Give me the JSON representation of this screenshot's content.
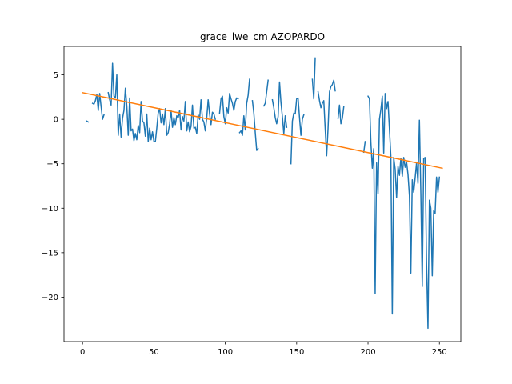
{
  "chart_data": {
    "type": "line",
    "title": "grace_lwe_cm AZOPARDO",
    "xlabel": "",
    "ylabel": "",
    "xlim": [
      -13,
      265
    ],
    "ylim": [
      -25,
      8.2
    ],
    "xticks": [
      0,
      50,
      100,
      150,
      200,
      250
    ],
    "yticks": [
      5,
      0,
      -5,
      -10,
      -15,
      -20
    ],
    "grid": false,
    "colors": {
      "observed": "#1f77b4",
      "trend": "#ff7f0e"
    },
    "series": [
      {
        "kind": "observed",
        "segments": [
          [
            [
              3,
              -0.2
            ],
            [
              4,
              -0.3
            ]
          ],
          [
            [
              7,
              1.8
            ],
            [
              8,
              1.7
            ],
            [
              9,
              2.1
            ],
            [
              10,
              2.8
            ],
            [
              11,
              1.0
            ],
            [
              12,
              2.9
            ],
            [
              13,
              1.4
            ],
            [
              14,
              0.0
            ],
            [
              15,
              0.5
            ]
          ],
          [
            [
              18,
              3.0
            ],
            [
              19,
              2.2
            ],
            [
              20,
              1.6
            ],
            [
              21,
              6.3
            ],
            [
              22,
              2.6
            ],
            [
              23,
              2.4
            ],
            [
              24,
              5.0
            ],
            [
              25,
              -1.8
            ],
            [
              26,
              0.6
            ],
            [
              27,
              -2.0
            ],
            [
              28,
              0.1
            ],
            [
              29,
              1.0
            ],
            [
              30,
              3.5
            ],
            [
              31,
              1.5
            ],
            [
              32,
              -1.8
            ],
            [
              33,
              2.4
            ],
            [
              34,
              -1.3
            ],
            [
              35,
              -1.1
            ],
            [
              36,
              -2.4
            ],
            [
              37,
              -1.6
            ],
            [
              38,
              -2.3
            ],
            [
              39,
              -0.7
            ],
            [
              40,
              -1.5
            ],
            [
              41,
              2.0
            ],
            [
              42,
              -0.2
            ],
            [
              43,
              -0.4
            ],
            [
              44,
              -1.9
            ],
            [
              45,
              0.6
            ],
            [
              46,
              -2.5
            ],
            [
              47,
              -1.0
            ],
            [
              48,
              -2.3
            ],
            [
              49,
              -1.4
            ],
            [
              50,
              -2.5
            ],
            [
              51,
              -2.5
            ],
            [
              52,
              -1.0
            ],
            [
              53,
              0.7
            ],
            [
              54,
              1.2
            ],
            [
              55,
              -0.4
            ],
            [
              56,
              0.6
            ],
            [
              57,
              -0.6
            ],
            [
              58,
              1.2
            ],
            [
              59,
              -1.8
            ],
            [
              60,
              -1.5
            ],
            [
              61,
              -0.5
            ],
            [
              62,
              1.0
            ],
            [
              63,
              -0.9
            ],
            [
              64,
              0.2
            ],
            [
              65,
              -0.6
            ],
            [
              66,
              0.4
            ],
            [
              67,
              0.2
            ],
            [
              68,
              1.0
            ],
            [
              69,
              -1.2
            ],
            [
              70,
              0.3
            ],
            [
              71,
              -0.2
            ],
            [
              72,
              2.0
            ],
            [
              73,
              -1.3
            ],
            [
              74,
              -0.3
            ],
            [
              75,
              -1.4
            ],
            [
              76,
              -0.8
            ],
            [
              77,
              1.6
            ],
            [
              78,
              -1.0
            ],
            [
              79,
              -0.9
            ],
            [
              80,
              -1.6
            ],
            [
              81,
              0.5
            ],
            [
              82,
              0.0
            ],
            [
              83,
              2.2
            ],
            [
              84,
              0.0
            ],
            [
              85,
              -0.3
            ],
            [
              86,
              -1.3
            ],
            [
              87,
              0.2
            ],
            [
              88,
              2.2
            ],
            [
              89,
              0.6
            ],
            [
              90,
              -0.6
            ],
            [
              91,
              0.8
            ],
            [
              92,
              0.6
            ],
            [
              93,
              0.0
            ]
          ],
          [
            [
              96,
              0.7
            ],
            [
              97,
              2.3
            ],
            [
              98,
              2.6
            ],
            [
              99,
              0.3
            ],
            [
              100,
              -0.5
            ],
            [
              101,
              1.3
            ],
            [
              102,
              0.7
            ],
            [
              103,
              2.9
            ],
            [
              104,
              2.3
            ],
            [
              105,
              1.8
            ],
            [
              106,
              1.0
            ],
            [
              107,
              2.0
            ],
            [
              108,
              2.4
            ],
            [
              109,
              2.3
            ]
          ],
          [
            [
              110,
              -1.5
            ],
            [
              111,
              -1.3
            ],
            [
              112,
              -1.8
            ],
            [
              113,
              0.4
            ],
            [
              114,
              -1.2
            ],
            [
              115,
              1.8
            ],
            [
              116,
              2.7
            ],
            [
              117,
              4.5
            ]
          ],
          [
            [
              119,
              2.1
            ],
            [
              120,
              0.7
            ],
            [
              121,
              -1.5
            ],
            [
              122,
              -3.5
            ],
            [
              123,
              -3.3
            ]
          ],
          [
            [
              127,
              1.5
            ],
            [
              128,
              1.8
            ],
            [
              129,
              3.1
            ],
            [
              130,
              4.4
            ]
          ],
          [
            [
              133,
              2.2
            ],
            [
              134,
              1.3
            ],
            [
              135,
              0.2
            ],
            [
              136,
              -0.5
            ],
            [
              137,
              0.3
            ],
            [
              138,
              4.2
            ],
            [
              139,
              1.9
            ],
            [
              140,
              0.3
            ],
            [
              141,
              -1.6
            ],
            [
              142,
              0.4
            ],
            [
              143,
              -0.9
            ]
          ],
          [
            [
              146,
              -5.0
            ],
            [
              147,
              -0.2
            ],
            [
              148,
              0.7
            ],
            [
              149,
              0.6
            ],
            [
              150,
              2.3
            ],
            [
              151,
              2.4
            ],
            [
              152,
              0.2
            ],
            [
              153,
              -1.8
            ],
            [
              154,
              0.0
            ],
            [
              155,
              0.5
            ]
          ],
          [
            [
              161,
              4.5
            ],
            [
              162,
              2.3
            ],
            [
              163,
              6.9
            ]
          ],
          [
            [
              165,
              3.1
            ],
            [
              166,
              2.1
            ],
            [
              167,
              1.3
            ],
            [
              168,
              1.8
            ],
            [
              169,
              2.1
            ],
            [
              170,
              -1.1
            ],
            [
              171,
              -4.1
            ],
            [
              172,
              -1.0
            ],
            [
              173,
              3.1
            ],
            [
              174,
              3.7
            ],
            [
              175,
              3.9
            ],
            [
              176,
              4.4
            ],
            [
              177,
              3.2
            ]
          ],
          [
            [
              179,
              0.1
            ],
            [
              180,
              1.6
            ],
            [
              181,
              -0.5
            ],
            [
              182,
              0.1
            ],
            [
              183,
              1.4
            ]
          ],
          [
            [
              197,
              -3.7
            ],
            [
              198,
              -2.5
            ]
          ],
          [
            [
              200,
              2.6
            ],
            [
              201,
              2.3
            ],
            [
              202,
              -2.6
            ],
            [
              203,
              -5.5
            ],
            [
              204,
              -3.3
            ],
            [
              205,
              -19.6
            ],
            [
              206,
              -4.9
            ],
            [
              207,
              -8.4
            ],
            [
              208,
              0.0
            ],
            [
              209,
              1.1
            ],
            [
              210,
              2.6
            ],
            [
              211,
              -3.8
            ],
            [
              212,
              2.9
            ],
            [
              213,
              1.2
            ],
            [
              214,
              2.0
            ],
            [
              215,
              -1.1
            ],
            [
              216,
              -4.2
            ],
            [
              217,
              -21.9
            ],
            [
              218,
              -4.3
            ],
            [
              219,
              -5.6
            ],
            [
              220,
              -8.8
            ],
            [
              221,
              -5.3
            ],
            [
              222,
              -6.3
            ],
            [
              223,
              -4.4
            ],
            [
              224,
              -6.4
            ],
            [
              225,
              -4.3
            ],
            [
              226,
              -5.4
            ],
            [
              227,
              -4.8
            ],
            [
              228,
              -6.2
            ],
            [
              229,
              -8.6
            ],
            [
              230,
              -17.3
            ],
            [
              231,
              -6.8
            ],
            [
              232,
              -8.2
            ],
            [
              233,
              -6.6
            ],
            [
              234,
              -4.9
            ],
            [
              235,
              -7.2
            ],
            [
              236,
              -0.1
            ],
            [
              237,
              -8.3
            ],
            [
              238,
              -18.8
            ],
            [
              239,
              -4.4
            ],
            [
              240,
              -4.3
            ],
            [
              241,
              -16.2
            ],
            [
              242,
              -23.5
            ],
            [
              243,
              -9.1
            ],
            [
              244,
              -10.0
            ],
            [
              245,
              -17.6
            ],
            [
              246,
              -10.3
            ],
            [
              247,
              -10.6
            ],
            [
              248,
              -6.5
            ],
            [
              249,
              -8.2
            ],
            [
              250,
              -6.5
            ]
          ]
        ]
      },
      {
        "kind": "trend",
        "x": [
          0,
          252
        ],
        "y": [
          3.0,
          -5.5
        ]
      }
    ]
  }
}
